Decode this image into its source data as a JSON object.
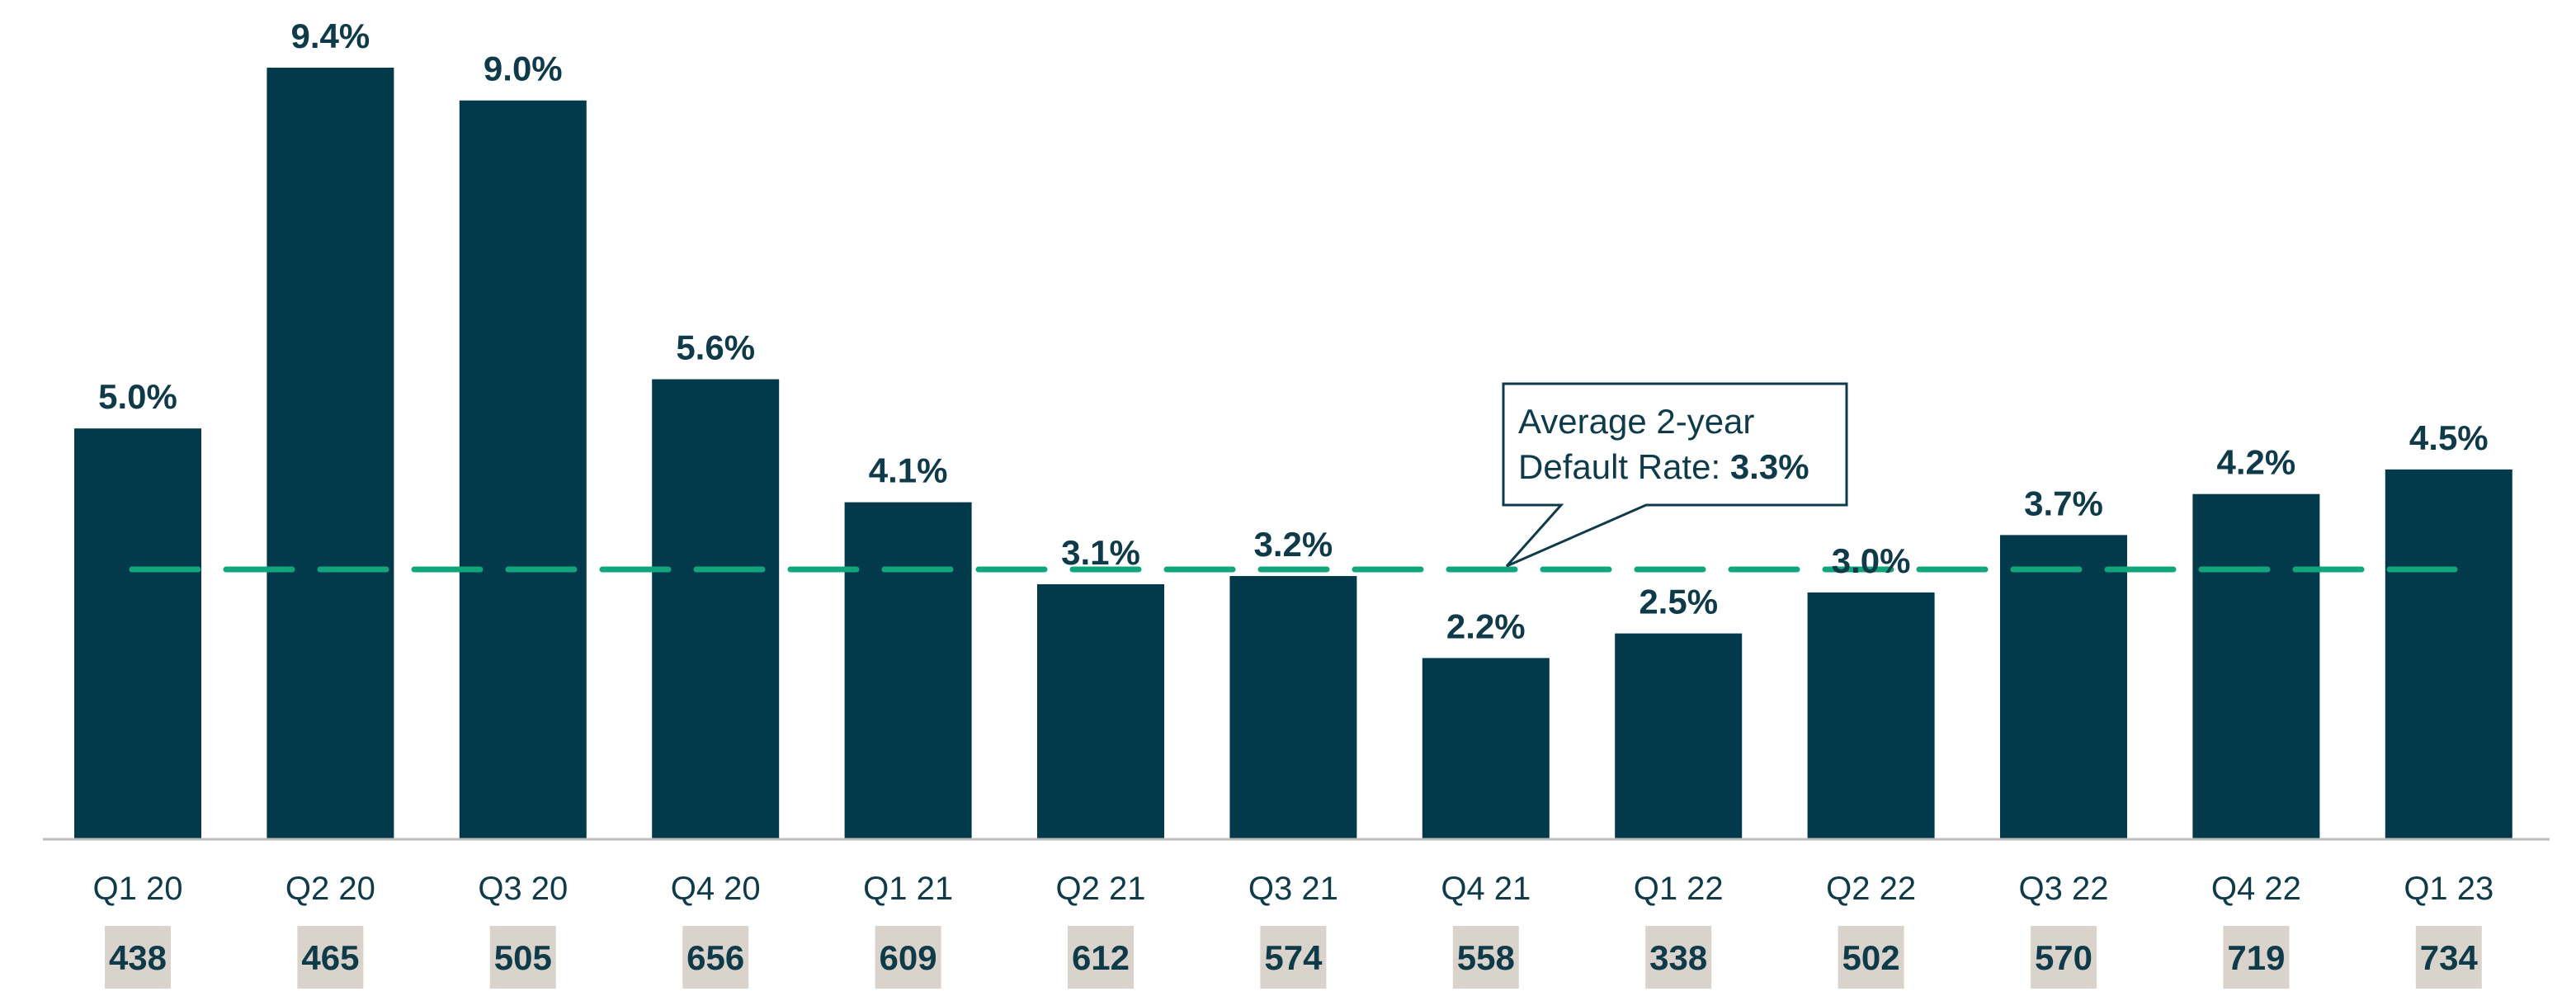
{
  "chart_data": {
    "type": "bar",
    "categories": [
      "Q1 20",
      "Q2 20",
      "Q3 20",
      "Q4 20",
      "Q1 21",
      "Q2 21",
      "Q3 21",
      "Q4 21",
      "Q1 22",
      "Q2 22",
      "Q3 22",
      "Q4 22",
      "Q1 23"
    ],
    "values": [
      5.0,
      9.4,
      9.0,
      5.6,
      4.1,
      3.1,
      3.2,
      2.2,
      2.5,
      3.0,
      3.7,
      4.2,
      4.5
    ],
    "value_labels": [
      "5.0%",
      "9.4%",
      "9.0%",
      "5.6%",
      "4.1%",
      "3.1%",
      "3.2%",
      "2.2%",
      "2.5%",
      "3.0%",
      "3.7%",
      "4.2%",
      "4.5%"
    ],
    "counts": [
      "438",
      "465",
      "505",
      "656",
      "609",
      "612",
      "574",
      "558",
      "338",
      "502",
      "570",
      "719",
      "734"
    ],
    "average_line": {
      "value": 3.3
    },
    "annotation": {
      "line1": "Average 2-year",
      "line2_prefix": "Default Rate: ",
      "line2_value": "3.3%"
    },
    "ylim": [
      0,
      9.4
    ],
    "grid": false,
    "colors": {
      "bar": "#023a4b",
      "average_line": "#12a57c",
      "count_box": "#dad3cb",
      "text": "#0f3a4a",
      "axis": "#bdbdbd"
    }
  }
}
